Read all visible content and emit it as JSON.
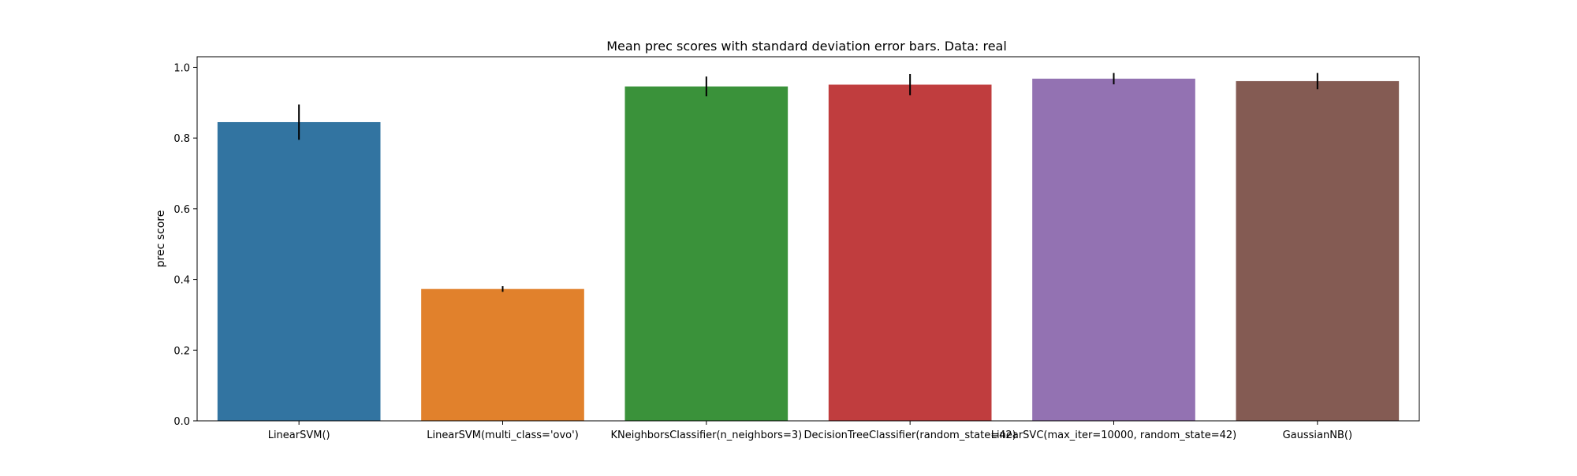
{
  "chart_data": {
    "type": "bar",
    "title": "Mean prec scores with standard deviation error bars. Data: real",
    "xlabel": "",
    "ylabel": "prec score",
    "ylim": [
      0,
      1.03
    ],
    "yticks": [
      {
        "value": 0.0,
        "label": "0.0"
      },
      {
        "value": 0.2,
        "label": "0.2"
      },
      {
        "value": 0.4,
        "label": "0.4"
      },
      {
        "value": 0.6,
        "label": "0.6"
      },
      {
        "value": 0.8,
        "label": "0.8"
      },
      {
        "value": 1.0,
        "label": "1.0"
      }
    ],
    "grid": false,
    "categories": [
      "LinearSVM()",
      "LinearSVM(multi_class='ovo')",
      "KNeighborsClassifier(n_neighbors=3)",
      "DecisionTreeClassifier(random_state=42)",
      "LinearSVC(max_iter=10000, random_state=42)",
      "GaussianNB()"
    ],
    "values": [
      0.845,
      0.373,
      0.946,
      0.951,
      0.968,
      0.961
    ],
    "errors": [
      0.05,
      0.008,
      0.028,
      0.03,
      0.016,
      0.023
    ],
    "colors": [
      "#3274a1",
      "#e1812c",
      "#3a923a",
      "#c03d3e",
      "#9372b2",
      "#845b53"
    ]
  }
}
